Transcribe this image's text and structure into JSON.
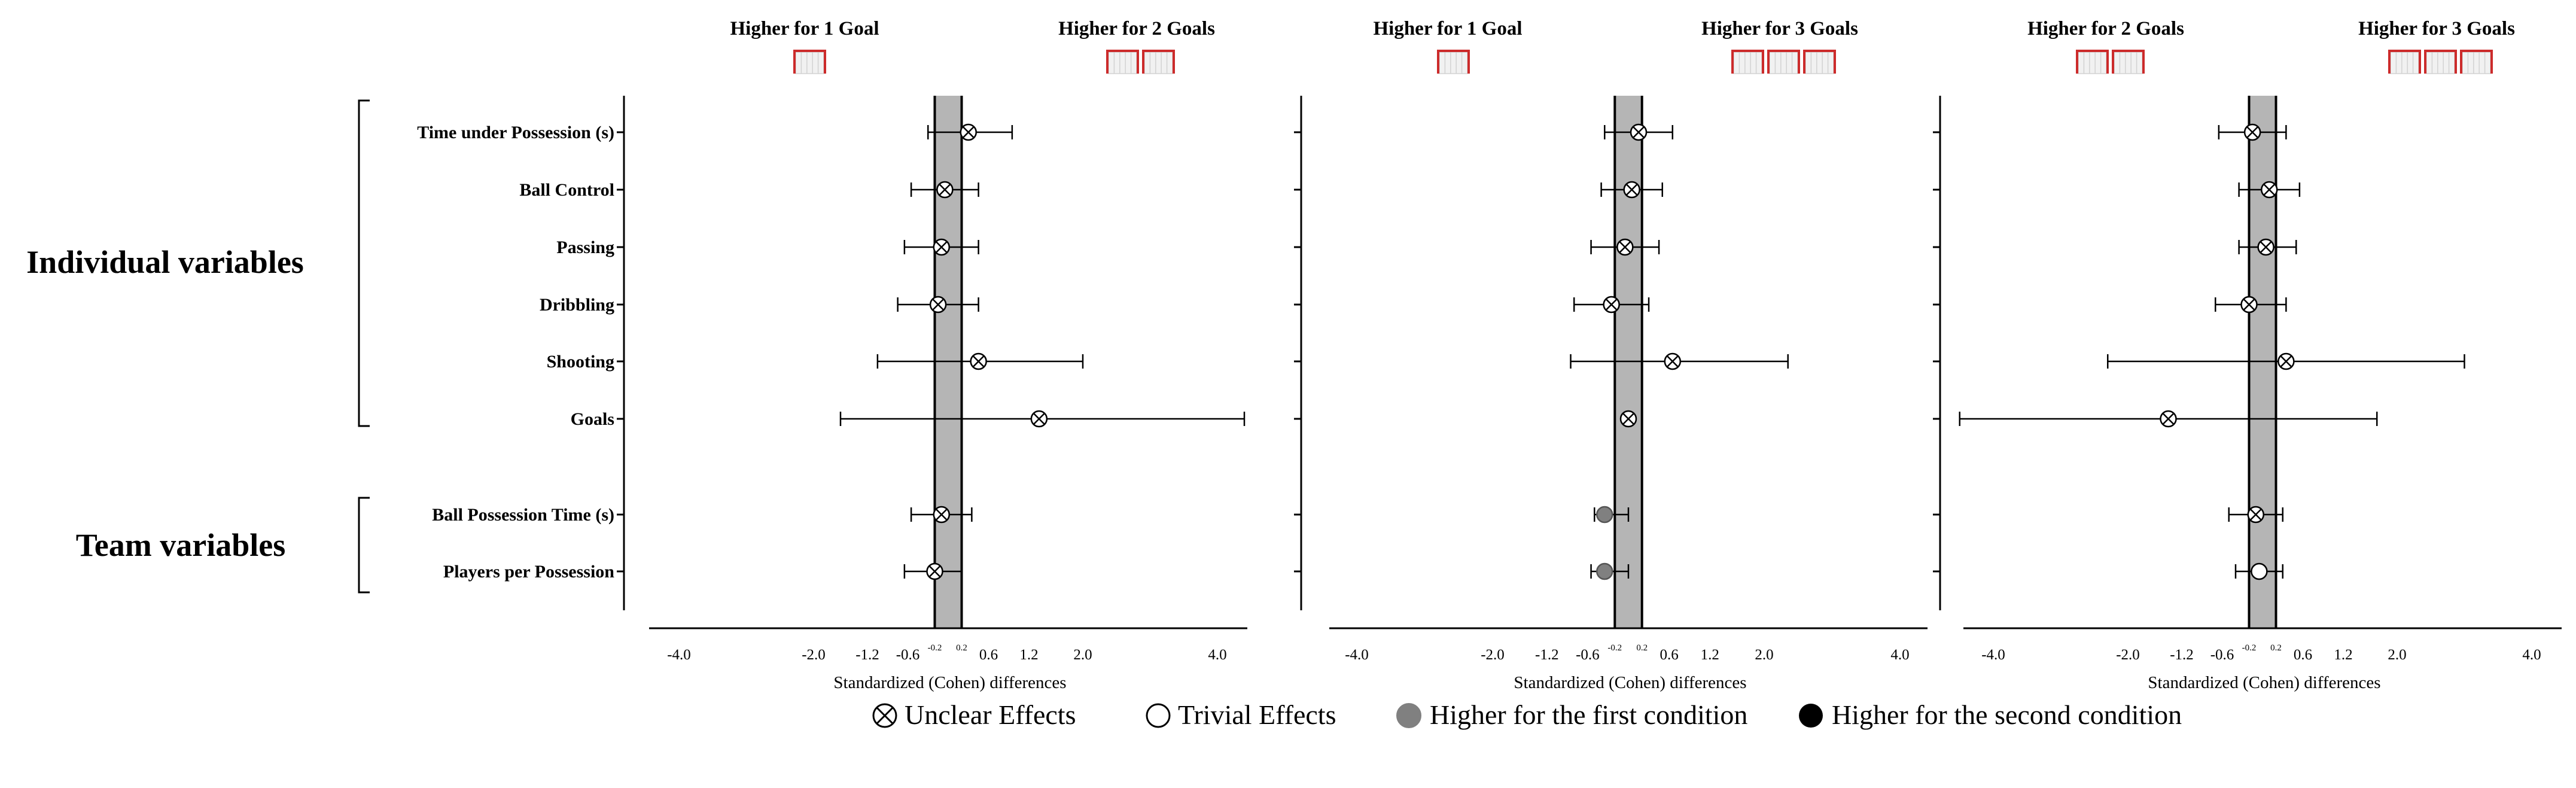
{
  "colors": {
    "band": "#b5b5b5",
    "goal_frame": "#cc2b2b",
    "goal_net": "#d2d2d2",
    "first_condition": "#808080",
    "second_condition": "#000000"
  },
  "group_labels": {
    "individual": "Individual variables",
    "team": "Team variables"
  },
  "row_labels": [
    "Time under Possession (s)",
    "Ball Control",
    "Passing",
    "Dribbling",
    "Shooting",
    "Goals",
    "Ball Possession Time (s)",
    "Players per Possession"
  ],
  "legend": [
    {
      "key": "unclear",
      "label": "Unclear Effects"
    },
    {
      "key": "trivial",
      "label": "Trivial Effects"
    },
    {
      "key": "first",
      "label": "Higher for the first condition"
    },
    {
      "key": "second",
      "label": "Higher for the second condition"
    }
  ],
  "chart_data": [
    {
      "type": "forest",
      "header_left": "Higher for 1 Goal",
      "left_goals": 1,
      "header_right": "Higher for 2 Goals",
      "right_goals": 2,
      "xlabel": "Standardized (Cohen) differences",
      "xlim": [
        -4.6,
        4.6
      ],
      "ticks": [
        "-4.0",
        "-2.0",
        "-1.2",
        "-0.6",
        "-0.2",
        "0.2",
        "0.6",
        "1.2",
        "2.0",
        "4.0"
      ],
      "trivial_band": [
        -0.2,
        0.2
      ],
      "rows": [
        {
          "label": "Time under Possession (s)",
          "mean": 0.3,
          "lo": -0.3,
          "hi": 0.95,
          "effect": "unclear"
        },
        {
          "label": "Ball Control",
          "mean": -0.05,
          "lo": -0.55,
          "hi": 0.45,
          "effect": "unclear"
        },
        {
          "label": "Passing",
          "mean": -0.1,
          "lo": -0.65,
          "hi": 0.45,
          "effect": "unclear"
        },
        {
          "label": "Dribbling",
          "mean": -0.15,
          "lo": -0.75,
          "hi": 0.45,
          "effect": "unclear"
        },
        {
          "label": "Shooting",
          "mean": 0.45,
          "lo": -1.05,
          "hi": 2.0,
          "effect": "unclear"
        },
        {
          "label": "Goals",
          "mean": 1.35,
          "lo": -1.6,
          "hi": 4.4,
          "effect": "unclear"
        },
        {
          "label": "Ball Possession Time (s)",
          "mean": -0.1,
          "lo": -0.55,
          "hi": 0.35,
          "effect": "unclear"
        },
        {
          "label": "Players per Possession",
          "mean": -0.2,
          "lo": -0.65,
          "hi": 0.2,
          "effect": "unclear"
        }
      ]
    },
    {
      "type": "forest",
      "header_left": "Higher for 1 Goal",
      "left_goals": 1,
      "header_right": "Higher for 3 Goals",
      "right_goals": 3,
      "xlabel": "Standardized (Cohen) differences",
      "xlim": [
        -4.6,
        4.6
      ],
      "ticks": [
        "-4.0",
        "-2.0",
        "-1.2",
        "-0.6",
        "-0.2",
        "0.2",
        "0.6",
        "1.2",
        "2.0",
        "4.0"
      ],
      "trivial_band": [
        -0.2,
        0.2
      ],
      "rows": [
        {
          "label": "Time under Possession (s)",
          "mean": 0.15,
          "lo": -0.35,
          "hi": 0.65,
          "effect": "unclear"
        },
        {
          "label": "Ball Control",
          "mean": 0.05,
          "lo": -0.4,
          "hi": 0.5,
          "effect": "unclear"
        },
        {
          "label": "Passing",
          "mean": -0.05,
          "lo": -0.55,
          "hi": 0.45,
          "effect": "unclear"
        },
        {
          "label": "Dribbling",
          "mean": -0.25,
          "lo": -0.8,
          "hi": 0.3,
          "effect": "unclear"
        },
        {
          "label": "Shooting",
          "mean": 0.65,
          "lo": -0.85,
          "hi": 2.35,
          "effect": "unclear"
        },
        {
          "label": "Goals",
          "mean": 0.0,
          "lo": 0.0,
          "hi": 0.0,
          "effect": "unclear"
        },
        {
          "label": "Ball Possession Time (s)",
          "mean": -0.35,
          "lo": -0.5,
          "hi": 0.0,
          "effect": "first"
        },
        {
          "label": "Players per Possession",
          "mean": -0.35,
          "lo": -0.55,
          "hi": 0.0,
          "effect": "first"
        }
      ]
    },
    {
      "type": "forest",
      "header_left": "Higher for 2 Goals",
      "left_goals": 2,
      "header_right": "Higher for 3 Goals",
      "right_goals": 3,
      "xlabel": "Standardized (Cohen) differences",
      "xlim": [
        -4.6,
        4.6
      ],
      "ticks": [
        "-4.0",
        "-2.0",
        "-1.2",
        "-0.6",
        "-0.2",
        "0.2",
        "0.6",
        "1.2",
        "2.0",
        "4.0"
      ],
      "trivial_band": [
        -0.2,
        0.2
      ],
      "rows": [
        {
          "label": "Time under Possession (s)",
          "mean": -0.15,
          "lo": -0.65,
          "hi": 0.35,
          "effect": "unclear"
        },
        {
          "label": "Ball Control",
          "mean": 0.1,
          "lo": -0.35,
          "hi": 0.55,
          "effect": "unclear"
        },
        {
          "label": "Passing",
          "mean": 0.05,
          "lo": -0.35,
          "hi": 0.5,
          "effect": "unclear"
        },
        {
          "label": "Dribbling",
          "mean": -0.2,
          "lo": -0.7,
          "hi": 0.35,
          "effect": "unclear"
        },
        {
          "label": "Shooting",
          "mean": 0.35,
          "lo": -2.3,
          "hi": 3.0,
          "effect": "unclear"
        },
        {
          "label": "Goals",
          "mean": -1.4,
          "lo": -4.5,
          "hi": 1.7,
          "effect": "unclear"
        },
        {
          "label": "Ball Possession Time (s)",
          "mean": -0.1,
          "lo": -0.5,
          "hi": 0.3,
          "effect": "unclear"
        },
        {
          "label": "Players per Possession",
          "mean": -0.05,
          "lo": -0.4,
          "hi": 0.3,
          "effect": "trivial"
        }
      ]
    }
  ]
}
